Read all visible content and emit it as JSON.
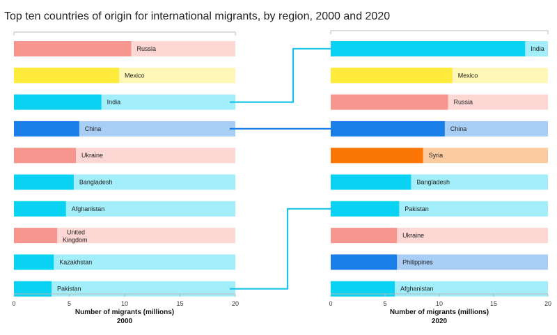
{
  "title": "Top ten countries of origin for international migrants, by region, 2000 and 2020",
  "colors": {
    "blue": "#1a7ee8",
    "cyan": "#0ad2f2",
    "yellow": "#ffeb3b",
    "salmon": "#f7958f",
    "orange": "#fb7605",
    "connector": "#19c3e5",
    "connector_dark": "#1a7ee8"
  },
  "chart_data": [
    {
      "type": "bar",
      "orientation": "horizontal",
      "xlabel": "Number of migrants (millions)",
      "subtitle": "2000",
      "xlim": [
        0,
        20
      ],
      "xticks": [
        0,
        5,
        10,
        15,
        20
      ],
      "categories": [
        "Russia",
        "Mexico",
        "India",
        "China",
        "Ukraine",
        "Bangladesh",
        "Afghanistan",
        "United Kingdom",
        "Kazakhstan",
        "Pakistan"
      ],
      "label_lines": [
        [
          "Russia"
        ],
        [
          "Mexico"
        ],
        [
          "India"
        ],
        [
          "China"
        ],
        [
          "Ukraine"
        ],
        [
          "Bangladesh"
        ],
        [
          "Afghanistan"
        ],
        [
          "United",
          "Kingdom"
        ],
        [
          "Kazakhstan"
        ],
        [
          "Pakistan"
        ]
      ],
      "values": [
        10.6,
        9.5,
        7.9,
        5.9,
        5.6,
        5.4,
        4.7,
        3.9,
        3.6,
        3.4
      ],
      "color_keys": [
        "salmon",
        "yellow",
        "cyan",
        "blue",
        "salmon",
        "cyan",
        "cyan",
        "salmon",
        "cyan",
        "cyan"
      ]
    },
    {
      "type": "bar",
      "orientation": "horizontal",
      "xlabel": "Number of migrants (millions)",
      "subtitle": "2020",
      "xlim": [
        0,
        20
      ],
      "xticks": [
        0,
        5,
        10,
        15,
        20
      ],
      "categories": [
        "India",
        "Mexico",
        "Russia",
        "China",
        "Syria",
        "Bangladesh",
        "Pakistan",
        "Ukraine",
        "Philippines",
        "Afghanistan"
      ],
      "label_lines": [
        [
          "India"
        ],
        [
          "Mexico"
        ],
        [
          "Russia"
        ],
        [
          "China"
        ],
        [
          "Syria"
        ],
        [
          "Bangladesh"
        ],
        [
          "Pakistan"
        ],
        [
          "Ukraine"
        ],
        [
          "Philippines"
        ],
        [
          "Afghanistan"
        ]
      ],
      "values": [
        17.9,
        11.2,
        10.8,
        10.5,
        8.5,
        7.4,
        6.3,
        6.1,
        6.1,
        5.9
      ],
      "color_keys": [
        "cyan",
        "yellow",
        "salmon",
        "blue",
        "orange",
        "cyan",
        "cyan",
        "salmon",
        "blue",
        "cyan"
      ]
    }
  ],
  "connections": [
    {
      "from": "India",
      "to": "India",
      "color_key": "connector"
    },
    {
      "from": "China",
      "to": "China",
      "color_key": "connector_dark"
    },
    {
      "from": "Pakistan",
      "to": "Pakistan",
      "color_key": "connector"
    }
  ]
}
